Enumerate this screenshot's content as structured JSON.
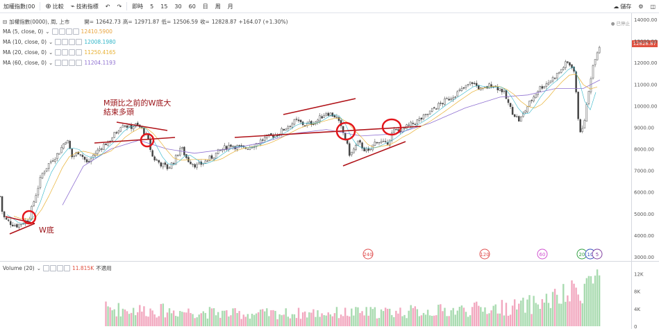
{
  "toolbar": {
    "symbol": "加權指數(00",
    "compare_label": "比較",
    "indicators_label": "技術指標",
    "intervals": [
      "即時",
      "5",
      "15",
      "30",
      "60",
      "日",
      "周",
      "月"
    ],
    "save_label": "儲存"
  },
  "header": {
    "title": "加權指數(0000), 周, 上市",
    "open_label": "開=",
    "open": "12642.73",
    "high_label": "高=",
    "high": "12971.87",
    "low_label": "低=",
    "low": "12506.59",
    "close_label": "收=",
    "close": "12828.87",
    "change": "+164.07 (+1.30%)",
    "status_note": "已停止"
  },
  "ma_legends": [
    {
      "label": "MA (5, close, 0)",
      "value": "12410.5900",
      "color": "#e8a33c"
    },
    {
      "label": "MA (10, close, 0)",
      "value": "12008.1980",
      "color": "#2fb5c8"
    },
    {
      "label": "MA (20, close, 0)",
      "value": "11250.4165",
      "color": "#e8b030"
    },
    {
      "label": "MA (60, close, 0)",
      "value": "11204.1193",
      "color": "#8e6fd1"
    }
  ],
  "volume_legend": {
    "label": "Volume (20)",
    "value": "11.815K",
    "note": "不適用"
  },
  "annotations": [
    {
      "text": "M頭比之前的W底大"
    },
    {
      "text": "結束多頭"
    },
    {
      "text": "W底"
    }
  ],
  "event_markers": [
    "240",
    "120",
    "60",
    "20",
    "10",
    "5"
  ],
  "current_price_label": "12828.87",
  "chart_data": {
    "type": "candlestick",
    "interval": "weekly",
    "y_ticks": [
      "14000.00",
      "13000.00",
      "12000.00",
      "11000.00",
      "10000.00",
      "9000.00",
      "8000.00",
      "7000.00",
      "6000.00",
      "5000.00",
      "4000.00",
      "3000.00"
    ],
    "ylim": [
      3000,
      14000
    ],
    "volume_ticks": [
      "12K",
      "8K",
      "4K",
      "0"
    ],
    "volume_ylim": [
      0,
      13000
    ],
    "price_path": [
      [
        0,
        5800
      ],
      [
        4,
        4900
      ],
      [
        9,
        4700
      ],
      [
        16,
        4550
      ],
      [
        24,
        4450
      ],
      [
        34,
        4600
      ],
      [
        42,
        4800
      ],
      [
        50,
        5700
      ],
      [
        60,
        6800
      ],
      [
        72,
        7400
      ],
      [
        84,
        7800
      ],
      [
        96,
        8500
      ],
      [
        104,
        7600
      ],
      [
        114,
        7900
      ],
      [
        126,
        7300
      ],
      [
        134,
        7700
      ],
      [
        146,
        8100
      ],
      [
        158,
        8400
      ],
      [
        168,
        8800
      ],
      [
        176,
        9200
      ],
      [
        186,
        9000
      ],
      [
        196,
        9100
      ],
      [
        206,
        8900
      ],
      [
        214,
        8300
      ],
      [
        220,
        7600
      ],
      [
        232,
        7300
      ],
      [
        242,
        7100
      ],
      [
        252,
        7500
      ],
      [
        260,
        8100
      ],
      [
        270,
        7500
      ],
      [
        284,
        7200
      ],
      [
        300,
        7500
      ],
      [
        316,
        7900
      ],
      [
        332,
        8200
      ],
      [
        350,
        8000
      ],
      [
        366,
        8200
      ],
      [
        382,
        8500
      ],
      [
        400,
        8700
      ],
      [
        412,
        9000
      ],
      [
        426,
        9300
      ],
      [
        440,
        9100
      ],
      [
        456,
        9300
      ],
      [
        470,
        9700
      ],
      [
        484,
        9500
      ],
      [
        496,
        8600
      ],
      [
        504,
        7700
      ],
      [
        516,
        8300
      ],
      [
        530,
        7800
      ],
      [
        542,
        8400
      ],
      [
        556,
        8200
      ],
      [
        566,
        8800
      ],
      [
        580,
        8900
      ],
      [
        596,
        9200
      ],
      [
        612,
        9500
      ],
      [
        626,
        9900
      ],
      [
        640,
        10200
      ],
      [
        654,
        10500
      ],
      [
        668,
        10800
      ],
      [
        680,
        11100
      ],
      [
        694,
        10700
      ],
      [
        708,
        11000
      ],
      [
        724,
        10700
      ],
      [
        736,
        9800
      ],
      [
        748,
        9300
      ],
      [
        760,
        10000
      ],
      [
        776,
        10800
      ],
      [
        790,
        11100
      ],
      [
        804,
        11500
      ],
      [
        816,
        12000
      ],
      [
        826,
        11800
      ],
      [
        834,
        9000
      ],
      [
        838,
        8700
      ],
      [
        846,
        10200
      ],
      [
        852,
        11600
      ],
      [
        858,
        12400
      ],
      [
        864,
        12829
      ]
    ],
    "ma60_path": [
      [
        90,
        5400
      ],
      [
        120,
        7200
      ],
      [
        160,
        8000
      ],
      [
        200,
        8400
      ],
      [
        240,
        8000
      ],
      [
        280,
        7800
      ],
      [
        330,
        8000
      ],
      [
        380,
        8300
      ],
      [
        420,
        8700
      ],
      [
        470,
        8900
      ],
      [
        520,
        8600
      ],
      [
        570,
        8700
      ],
      [
        620,
        9200
      ],
      [
        670,
        9900
      ],
      [
        720,
        10400
      ],
      [
        760,
        10500
      ],
      [
        800,
        10800
      ],
      [
        840,
        10800
      ],
      [
        864,
        11200
      ]
    ],
    "volume_path": [
      [
        150,
        4000
      ],
      [
        250,
        3500
      ],
      [
        350,
        2800
      ],
      [
        450,
        3000
      ],
      [
        550,
        3200
      ],
      [
        650,
        3600
      ],
      [
        750,
        4500
      ],
      [
        820,
        7000
      ],
      [
        864,
        12000
      ]
    ]
  }
}
